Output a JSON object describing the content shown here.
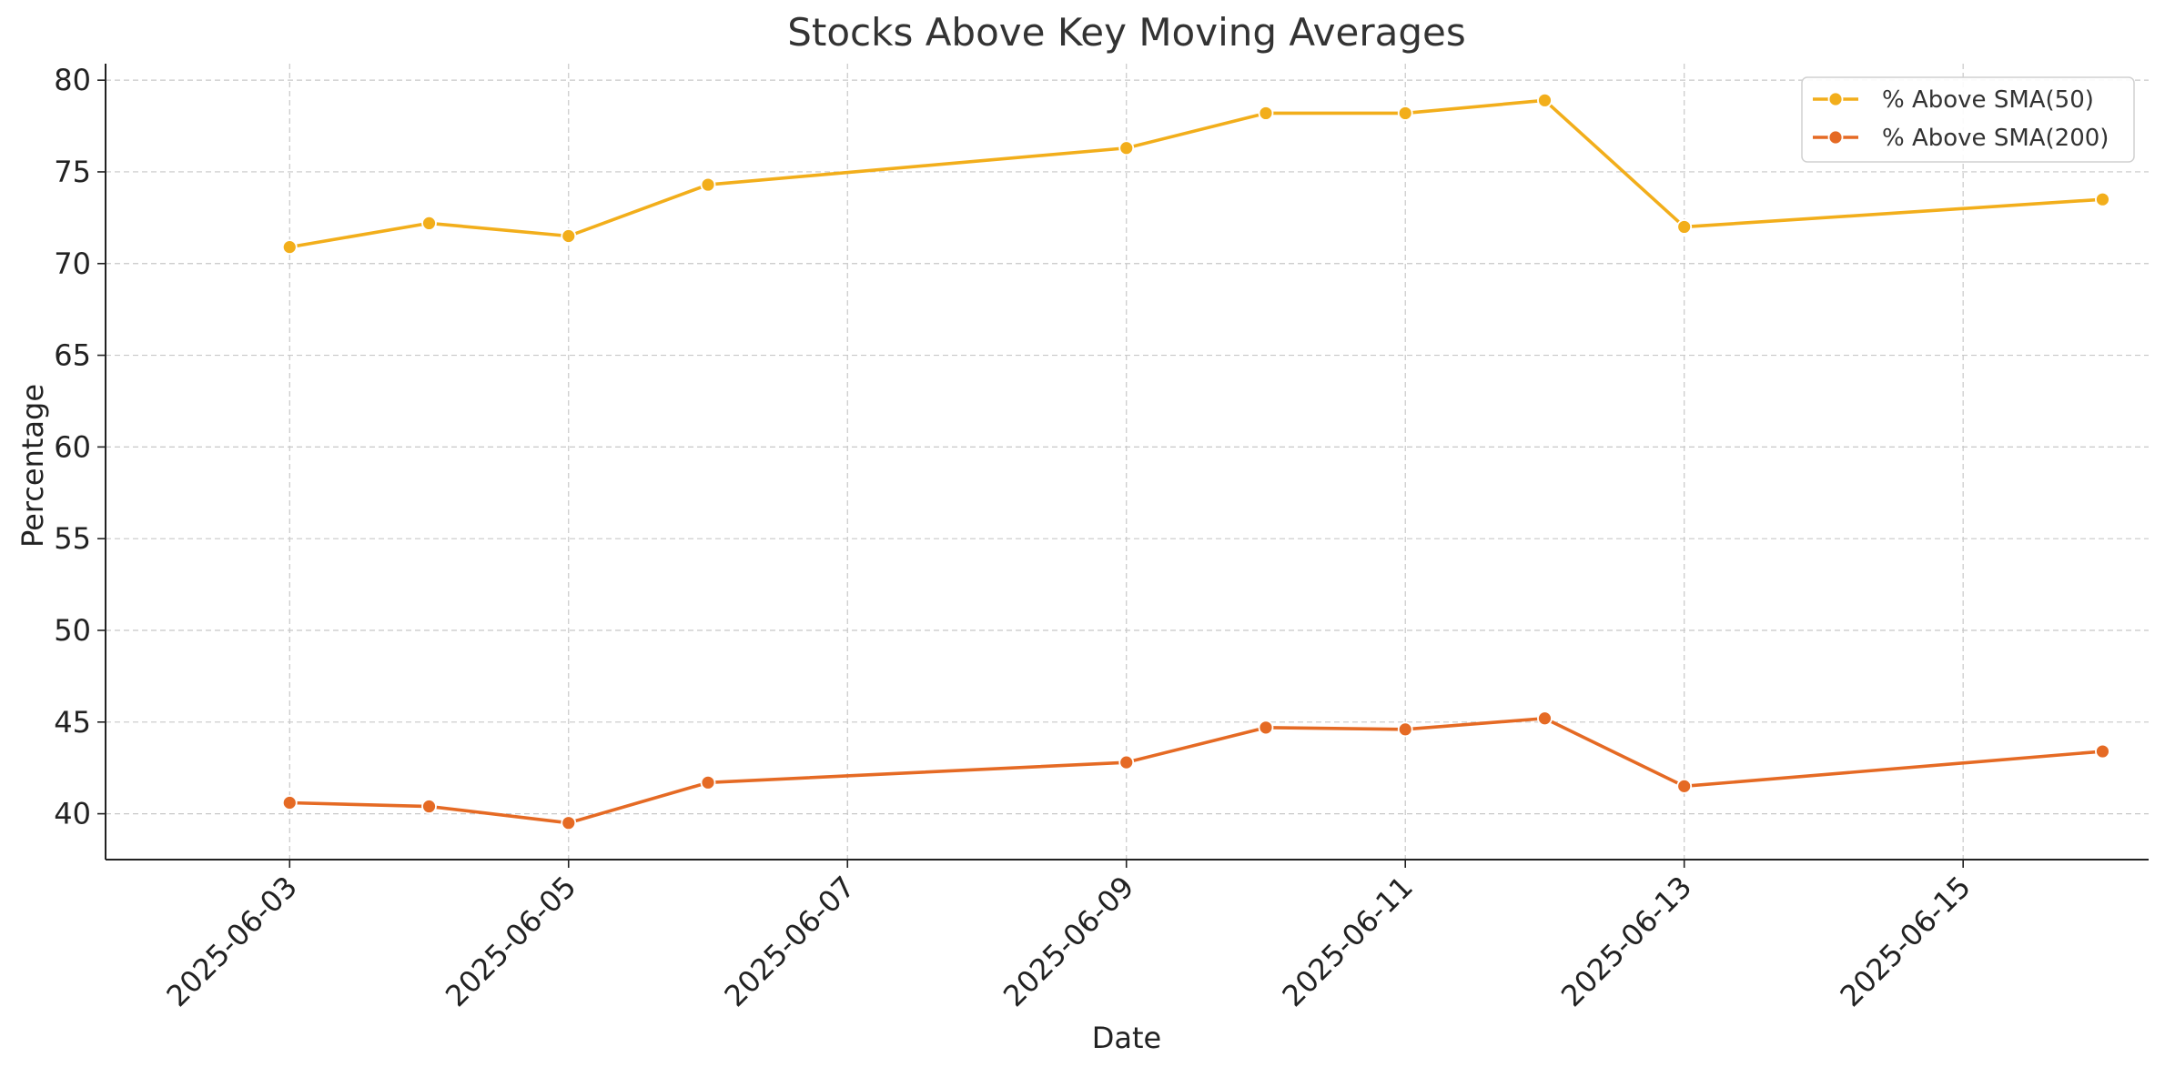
{
  "chart_data": {
    "type": "line",
    "title": "Stocks Above Key Moving Averages",
    "xlabel": "Date",
    "ylabel": "Percentage",
    "x": [
      "2025-06-03",
      "2025-06-04",
      "2025-06-05",
      "2025-06-06",
      "2025-06-09",
      "2025-06-10",
      "2025-06-11",
      "2025-06-12",
      "2025-06-13",
      "2025-06-16"
    ],
    "x_ticks": [
      "2025-06-03",
      "2025-06-05",
      "2025-06-07",
      "2025-06-09",
      "2025-06-11",
      "2025-06-13",
      "2025-06-15"
    ],
    "xlim": [
      "2025-06-02",
      "2025-06-16"
    ],
    "y_ticks": [
      40,
      45,
      50,
      55,
      60,
      65,
      70,
      75,
      80
    ],
    "ylim": [
      37.5,
      80.9
    ],
    "grid": true,
    "legend_position": "top-right",
    "series": [
      {
        "name": "% Above SMA(50)",
        "color": "#F2AE1B",
        "values": [
          70.9,
          72.2,
          71.5,
          74.3,
          76.3,
          78.2,
          78.2,
          78.9,
          72.0,
          73.5
        ]
      },
      {
        "name": "% Above SMA(200)",
        "color": "#E56A24",
        "values": [
          40.6,
          40.4,
          39.5,
          41.7,
          42.8,
          44.7,
          44.6,
          45.2,
          41.5,
          43.4
        ]
      }
    ]
  }
}
